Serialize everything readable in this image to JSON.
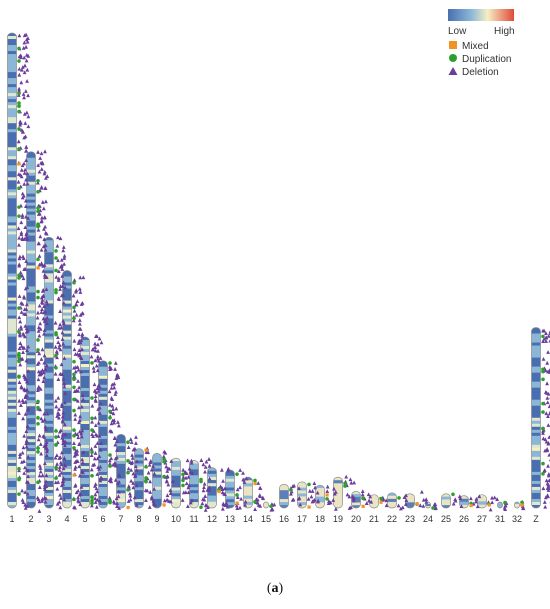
{
  "chart_data": {
    "type": "chromosome-map",
    "title": "",
    "chromosomes": [
      {
        "label": "1",
        "length": 100
      },
      {
        "label": "2",
        "length": 75
      },
      {
        "label": "3",
        "length": 57
      },
      {
        "label": "4",
        "length": 50
      },
      {
        "label": "5",
        "length": 36
      },
      {
        "label": "6",
        "length": 31
      },
      {
        "label": "7",
        "length": 15.5
      },
      {
        "label": "8",
        "length": 12.5
      },
      {
        "label": "9",
        "length": 11.5
      },
      {
        "label": "10",
        "length": 10.5
      },
      {
        "label": "11",
        "length": 10
      },
      {
        "label": "12",
        "length": 8.5
      },
      {
        "label": "13",
        "length": 8
      },
      {
        "label": "14",
        "length": 6.5
      },
      {
        "label": "15",
        "length": 1.2
      },
      {
        "label": "16",
        "length": 5.0
      },
      {
        "label": "17",
        "length": 5.5
      },
      {
        "label": "18",
        "length": 4.8
      },
      {
        "label": "19",
        "length": 6.5
      },
      {
        "label": "20",
        "length": 3.5
      },
      {
        "label": "21",
        "length": 2.8
      },
      {
        "label": "22",
        "length": 3.2
      },
      {
        "label": "23",
        "length": 3.0
      },
      {
        "label": "24",
        "length": 1.2
      },
      {
        "label": "25",
        "length": 3.0
      },
      {
        "label": "26",
        "length": 2.6
      },
      {
        "label": "27",
        "length": 2.8
      },
      {
        "label": "31",
        "length": 1.0
      },
      {
        "label": "32",
        "length": 0.8
      },
      {
        "label": "Z",
        "length": 38
      }
    ],
    "density_scale": {
      "low_label": "Low",
      "high_label": "High",
      "colors": [
        "#4a6fb0",
        "#8cb6d6",
        "#f5efc4",
        "#e04a3a"
      ]
    },
    "legend": {
      "placement": "top-right",
      "items": [
        {
          "label": "Mixed",
          "marker": "square",
          "color": "#f39323"
        },
        {
          "label": "Duplication",
          "marker": "circle",
          "color": "#2ca02c"
        },
        {
          "label": "Deletion",
          "marker": "triangle",
          "color": "#6a3d9a"
        }
      ]
    }
  },
  "caption": {
    "prefix": "(",
    "letter": "a",
    "suffix": ")"
  }
}
